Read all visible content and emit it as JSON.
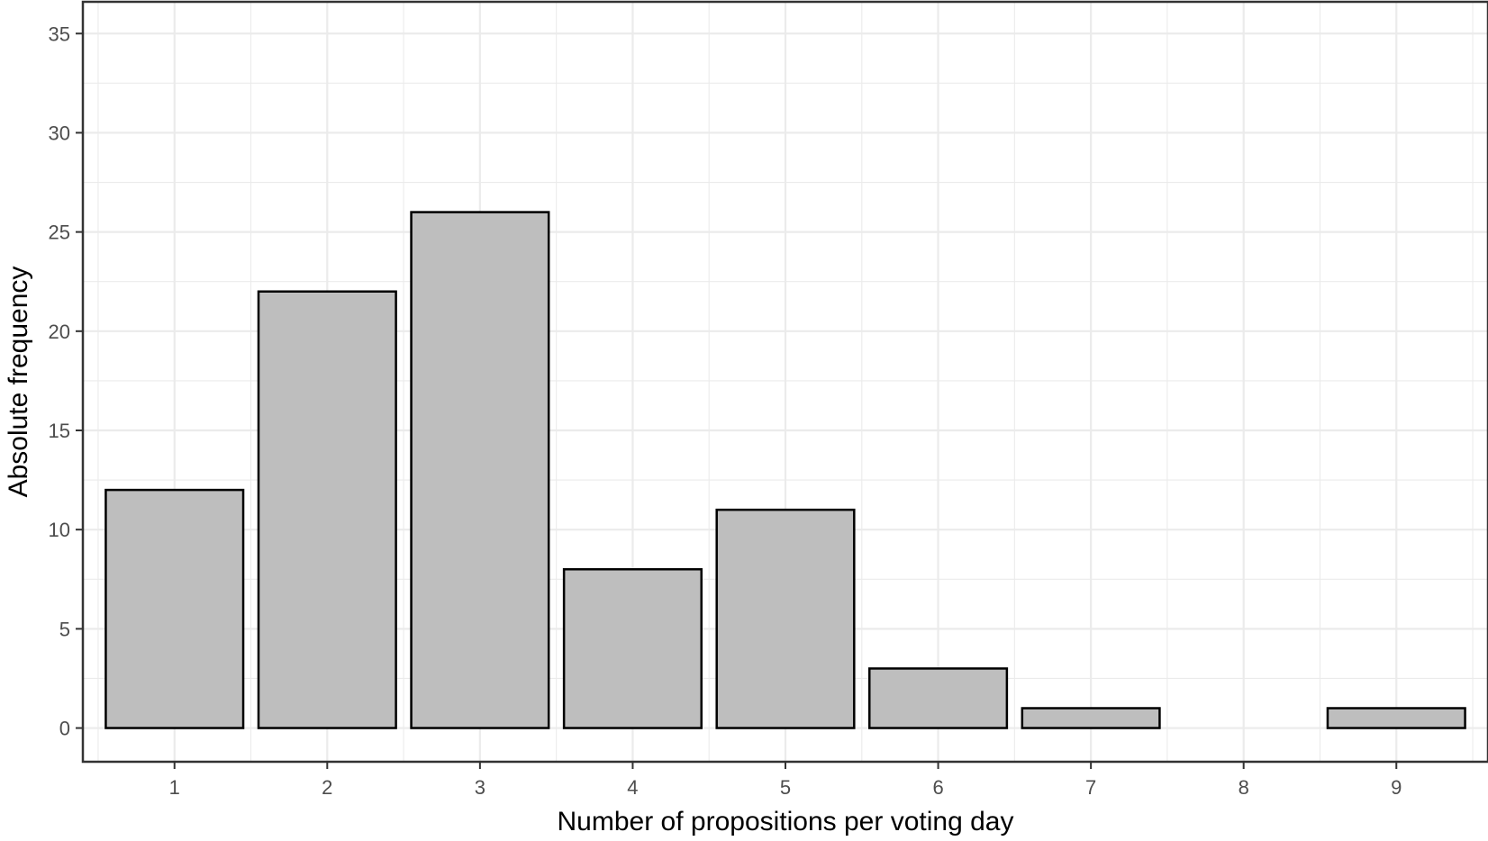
{
  "chart_data": {
    "type": "bar",
    "categories": [
      "1",
      "2",
      "3",
      "4",
      "5",
      "6",
      "7",
      "8",
      "9"
    ],
    "values": [
      12,
      22,
      26,
      8,
      11,
      3,
      1,
      0,
      1
    ],
    "title": "",
    "xlabel": "Number of propositions per voting day",
    "ylabel": "Absolute frequency",
    "xlim": [
      0.4,
      9.6
    ],
    "ylim": [
      -1.7,
      36.6
    ],
    "yticks": [
      0,
      5,
      10,
      15,
      20,
      25,
      30,
      35
    ],
    "grid": true,
    "legend": "none",
    "colors": {
      "bar_fill": "#bebebe",
      "bar_stroke": "#000000",
      "grid": "#ebebeb",
      "panel_border": "#333333"
    }
  }
}
